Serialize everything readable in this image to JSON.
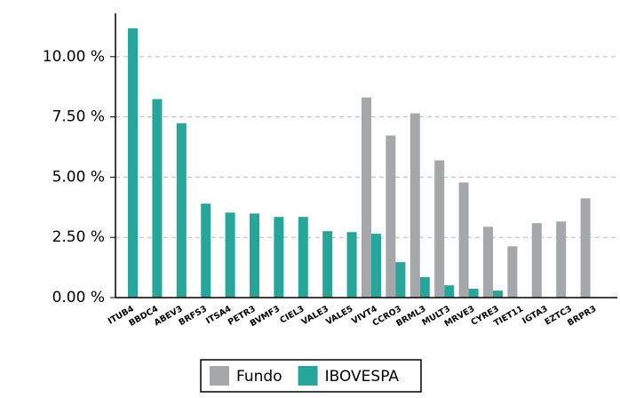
{
  "chart_data": {
    "type": "bar",
    "categories": [
      "ITUB4",
      "BBDC4",
      "ABEV3",
      "BRFS3",
      "ITSA4",
      "PETR3",
      "BVMF3",
      "CIEL3",
      "VALE3",
      "VALE5",
      "VIVT4",
      "CCRO3",
      "BRML3",
      "MULT3",
      "MRVE3",
      "CYRE3",
      "TIET11",
      "IGTA3",
      "EZTC3",
      "BRPR3"
    ],
    "series": [
      {
        "name": "Fundo",
        "color": "#a5a7aa",
        "values": [
          0,
          0,
          0,
          0,
          0,
          0,
          0,
          0,
          0,
          0,
          8.31,
          6.73,
          7.65,
          5.7,
          4.78,
          2.94,
          2.13,
          3.09,
          3.16,
          4.12
        ]
      },
      {
        "name": "IBOVESPA",
        "color": "#26a69a",
        "values": [
          11.18,
          8.24,
          7.24,
          3.9,
          3.53,
          3.49,
          3.35,
          3.35,
          2.76,
          2.72,
          2.65,
          1.47,
          0.85,
          0.51,
          0.37,
          0.29,
          0,
          0,
          0,
          0
        ]
      }
    ],
    "ylim": [
      0,
      11.8
    ],
    "yticks": [
      {
        "value": 0,
        "label": "0.00 %"
      },
      {
        "value": 2.5,
        "label": "2.50 %"
      },
      {
        "value": 5,
        "label": "5.00 %"
      },
      {
        "value": 7.5,
        "label": "7.50 %"
      },
      {
        "value": 10,
        "label": "10.00 %"
      }
    ],
    "grid": true,
    "legend": "bottom"
  }
}
